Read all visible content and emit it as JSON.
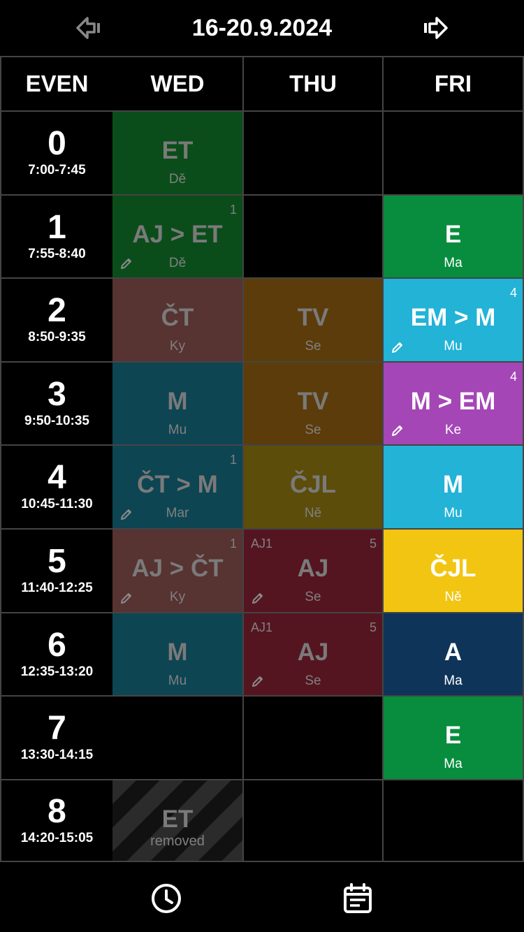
{
  "header": {
    "date_range": "16-20.9.2024",
    "prev_icon": "prev-week-arrow-icon",
    "next_icon": "next-week-arrow-icon"
  },
  "columns": {
    "week_type": "EVEN",
    "days": [
      "WED",
      "THU",
      "FRI"
    ]
  },
  "periods": [
    {
      "num": "0",
      "time": "7:00-7:45"
    },
    {
      "num": "1",
      "time": "7:55-8:40"
    },
    {
      "num": "2",
      "time": "8:50-9:35"
    },
    {
      "num": "3",
      "time": "9:50-10:35"
    },
    {
      "num": "4",
      "time": "10:45-11:30"
    },
    {
      "num": "5",
      "time": "11:40-12:25"
    },
    {
      "num": "6",
      "time": "12:35-13:20"
    },
    {
      "num": "7",
      "time": "13:30-14:15"
    },
    {
      "num": "8",
      "time": "14:20-15:05"
    }
  ],
  "lessons": {
    "wed": [
      {
        "period": 0,
        "subject": "ET",
        "teacher": "Dě",
        "color": "#0b4d1a",
        "past": true
      },
      {
        "period": 1,
        "subject": "AJ > ET",
        "teacher": "Dě",
        "color": "#0b4d1a",
        "past": true,
        "badge": "1",
        "edited": true
      },
      {
        "period": 2,
        "subject": "ČT",
        "teacher": "Ky",
        "color": "#573331",
        "past": true
      },
      {
        "period": 3,
        "subject": "M",
        "teacher": "Mu",
        "color": "#0e4552",
        "past": true
      },
      {
        "period": 4,
        "subject": "ČT > M",
        "teacher": "Mar",
        "color": "#0e4552",
        "past": true,
        "badge": "1",
        "edited": true
      },
      {
        "period": 5,
        "subject": "AJ > ČT",
        "teacher": "Ky",
        "color": "#573331",
        "past": true,
        "badge": "1",
        "edited": true
      },
      {
        "period": 6,
        "subject": "M",
        "teacher": "Mu",
        "color": "#0e4552",
        "past": true
      },
      {
        "period": 8,
        "subject": "ET",
        "teacher": "removed",
        "removed": true,
        "past": true
      }
    ],
    "thu": [
      {
        "period": 2,
        "subject": "TV",
        "teacher": "Se",
        "color": "#5c3c0a",
        "past": true
      },
      {
        "period": 3,
        "subject": "TV",
        "teacher": "Se",
        "color": "#5c3c0a",
        "past": true
      },
      {
        "period": 4,
        "subject": "ČJL",
        "teacher": "Ně",
        "color": "#5c4d0b",
        "past": true
      },
      {
        "period": 5,
        "subject": "AJ",
        "teacher": "Se",
        "color": "#551520",
        "past": true,
        "badge": "5",
        "group": "AJ1",
        "edited": true
      },
      {
        "period": 6,
        "subject": "AJ",
        "teacher": "Se",
        "color": "#551520",
        "past": true,
        "badge": "5",
        "group": "AJ1",
        "edited": true
      }
    ],
    "fri": [
      {
        "period": 1,
        "subject": "E",
        "teacher": "Ma",
        "color": "#078d3d"
      },
      {
        "period": 2,
        "subject": "EM > M",
        "teacher": "Mu",
        "color": "#22b3d6",
        "badge": "4",
        "edited": true
      },
      {
        "period": 3,
        "subject": "M > EM",
        "teacher": "Ke",
        "color": "#a546b6",
        "badge": "4",
        "edited": true
      },
      {
        "period": 4,
        "subject": "M",
        "teacher": "Mu",
        "color": "#22b3d6"
      },
      {
        "period": 5,
        "subject": "ČJL",
        "teacher": "Ně",
        "color": "#f2c512"
      },
      {
        "period": 6,
        "subject": "A",
        "teacher": "Ma",
        "color": "#0f3459"
      },
      {
        "period": 7,
        "subject": "E",
        "teacher": "Ma",
        "color": "#078d3d"
      }
    ]
  },
  "bottom_nav": {
    "items": [
      "clock-icon",
      "calendar-icon"
    ]
  }
}
